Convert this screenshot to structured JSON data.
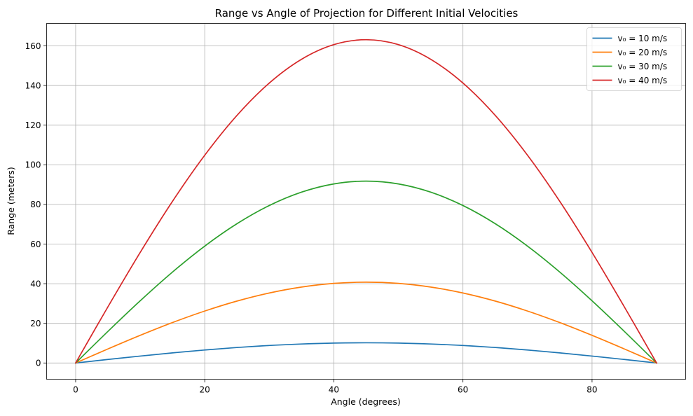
{
  "chart_data": {
    "type": "line",
    "title": "Range vs Angle of Projection for Different Initial Velocities",
    "xlabel": "Angle (degrees)",
    "ylabel": "Range (meters)",
    "xlim": [
      -4.5,
      94.5
    ],
    "ylim": [
      -8.2,
      171.3
    ],
    "xticks": [
      0,
      20,
      40,
      60,
      80
    ],
    "yticks": [
      0,
      20,
      40,
      60,
      80,
      100,
      120,
      140,
      160
    ],
    "grid": true,
    "legend_position": "top-right",
    "x": [
      0,
      5,
      10,
      15,
      20,
      25,
      30,
      35,
      40,
      45,
      50,
      55,
      60,
      65,
      70,
      75,
      80,
      85,
      90
    ],
    "series": [
      {
        "name": "v₀ = 10 m/s",
        "color": "#1f77b4",
        "values": [
          0,
          1.77,
          3.49,
          5.1,
          6.55,
          7.81,
          8.83,
          9.58,
          10.04,
          10.19,
          10.04,
          9.58,
          8.83,
          7.81,
          6.55,
          5.1,
          3.49,
          1.77,
          0
        ]
      },
      {
        "name": "v₀ = 20 m/s",
        "color": "#ff7f0e",
        "values": [
          0,
          7.08,
          13.94,
          20.39,
          26.21,
          31.24,
          35.31,
          38.31,
          40.16,
          40.77,
          40.16,
          38.31,
          35.31,
          31.24,
          26.21,
          20.39,
          13.94,
          7.08,
          0
        ]
      },
      {
        "name": "v₀ = 30 m/s",
        "color": "#2ca02c",
        "values": [
          0,
          15.94,
          31.38,
          45.87,
          58.97,
          70.28,
          79.45,
          86.2,
          90.35,
          91.74,
          90.35,
          86.2,
          79.45,
          70.28,
          58.97,
          45.87,
          31.38,
          15.94,
          0
        ]
      },
      {
        "name": "v₀ = 40 m/s",
        "color": "#d62728",
        "values": [
          0,
          28.33,
          55.78,
          81.55,
          104.83,
          124.94,
          141.24,
          153.24,
          160.62,
          163.1,
          160.62,
          153.24,
          141.24,
          124.94,
          104.83,
          81.55,
          55.78,
          28.33,
          0
        ]
      }
    ]
  }
}
